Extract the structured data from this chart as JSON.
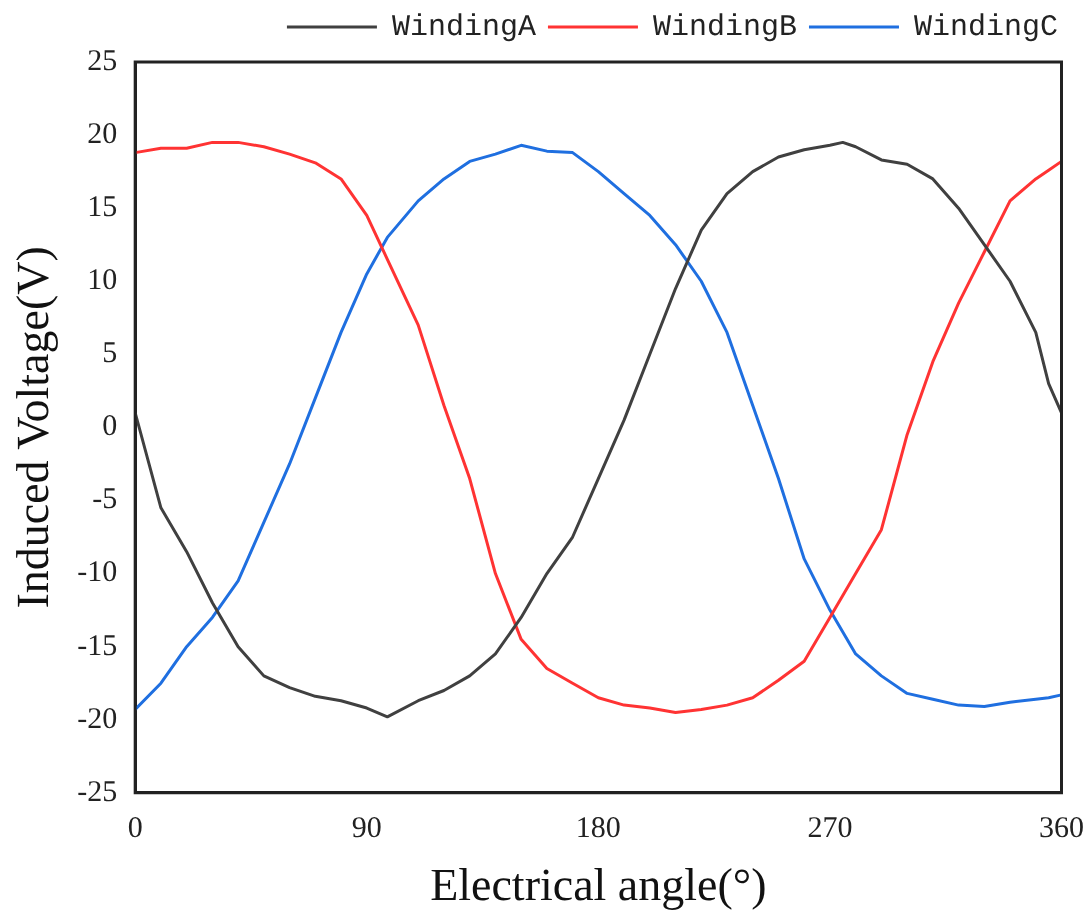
{
  "chart_data": {
    "type": "line",
    "xlabel": "Electrical angle(°)",
    "ylabel": "Induced Voltage(V)",
    "x": [
      0,
      10,
      20,
      30,
      40,
      50,
      60,
      70,
      80,
      90,
      98,
      110,
      120,
      130,
      140,
      150,
      160,
      170,
      180,
      190,
      200,
      210,
      220,
      230,
      240,
      250,
      260,
      270,
      275,
      280,
      290,
      300,
      310,
      320,
      330,
      340,
      350,
      355,
      360
    ],
    "series": [
      {
        "name": "WindingA",
        "color": "#404040",
        "values": [
          1,
          -5.5,
          -8.5,
          -12,
          -15,
          -17,
          -17.8,
          -18.4,
          -18.7,
          -19.2,
          -19.8,
          -18.7,
          -18,
          -17,
          -15.5,
          -13,
          -10,
          -7.5,
          -3.5,
          0.5,
          5,
          9.5,
          13.5,
          16,
          17.5,
          18.5,
          19,
          19.3,
          19.5,
          19.2,
          18.3,
          18,
          17,
          15,
          12.5,
          10,
          6.5,
          3,
          1
        ]
      },
      {
        "name": "WindingB",
        "color": "#ff3333",
        "values": [
          18.8,
          19.1,
          19.1,
          19.5,
          19.5,
          19.2,
          18.7,
          18.1,
          17,
          14.5,
          11.5,
          7,
          1.5,
          -3.5,
          -10,
          -14.5,
          -16.5,
          -17.5,
          -18.5,
          -19,
          -19.2,
          -19.5,
          -19.3,
          -19,
          -18.5,
          -17.3,
          -16,
          -13,
          -11.5,
          -10,
          -7,
          -0.5,
          4.5,
          8.5,
          12,
          15.5,
          17,
          17.6,
          18.2
        ]
      },
      {
        "name": "WindingC",
        "color": "#1f6fe0",
        "values": [
          -19.3,
          -17.5,
          -15,
          -13,
          -10.5,
          -6.5,
          -2.5,
          2,
          6.5,
          10.5,
          13,
          15.5,
          17,
          18.2,
          18.7,
          19.3,
          18.9,
          18.8,
          17.5,
          16,
          14.5,
          12.5,
          10,
          6.5,
          1.5,
          -3.5,
          -9,
          -12.5,
          -14,
          -15.5,
          -17,
          -18.2,
          -18.6,
          -19,
          -19.1,
          -18.8,
          -18.6,
          -18.5,
          -18.3
        ]
      }
    ],
    "xlim": [
      0,
      360
    ],
    "xticks": [
      0,
      90,
      180,
      270,
      360
    ],
    "ylim": [
      -25,
      25
    ],
    "yticks": [
      -25,
      -20,
      -15,
      -10,
      -5,
      0,
      5,
      10,
      15,
      20,
      25
    ],
    "grid": false,
    "legend": "top right",
    "marker": "none",
    "line_style": "solid"
  }
}
